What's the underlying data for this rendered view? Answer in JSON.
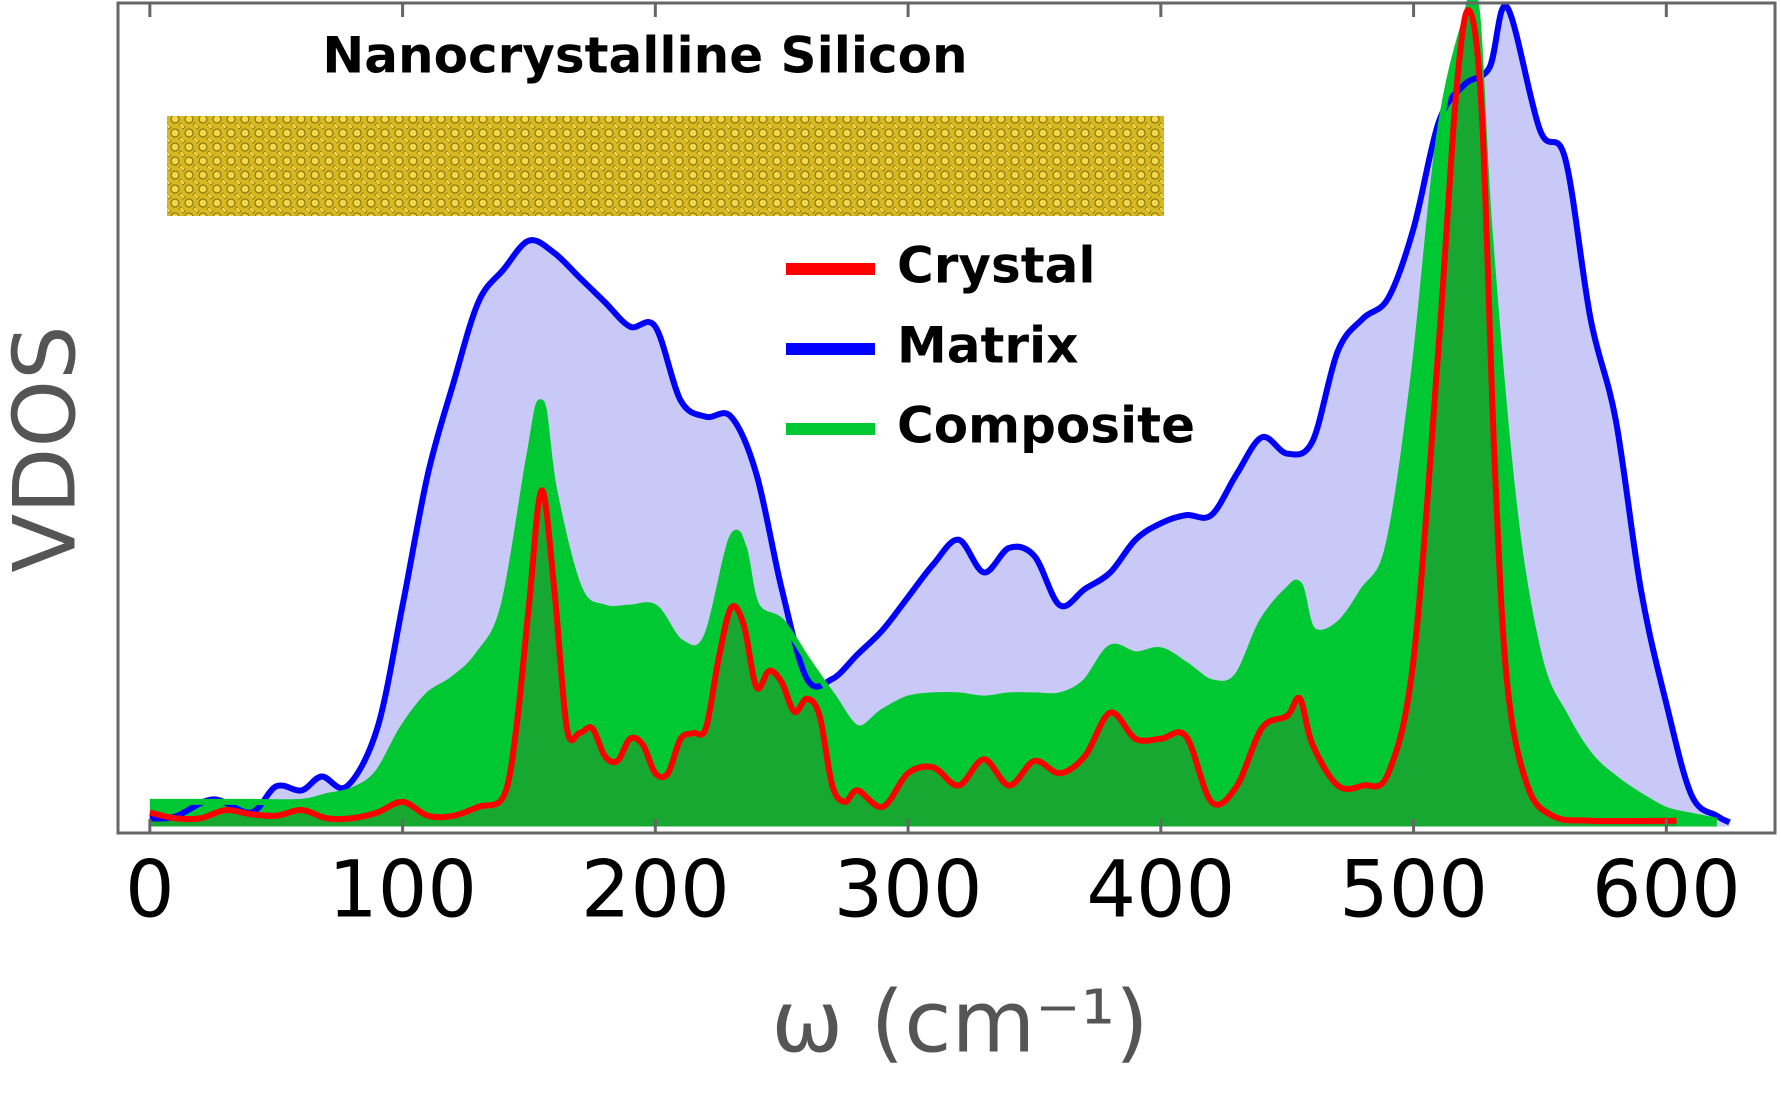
{
  "chart_data": {
    "type": "area",
    "title": "Nanocrystalline Silicon",
    "xlabel": "ω (cm⁻¹)",
    "ylabel": "VDOS",
    "xlim": [
      -12.6,
      643
    ],
    "xticks": [
      0,
      100,
      200,
      300,
      400,
      500,
      600
    ],
    "ylim": [
      -0.8,
      100.5
    ],
    "series": [
      {
        "name": "Crystal",
        "color": "#ff0000",
        "fill": "#17a832",
        "x": [
          0,
          10,
          20,
          30,
          40,
          50,
          60,
          70,
          80,
          90,
          100,
          110,
          120,
          130,
          140,
          145,
          150,
          155,
          160,
          165,
          170,
          175,
          180,
          185,
          190,
          195,
          200,
          205,
          210,
          215,
          220,
          225,
          230,
          235,
          240,
          245,
          250,
          255,
          260,
          265,
          270,
          275,
          280,
          290,
          300,
          310,
          320,
          330,
          340,
          350,
          360,
          370,
          380,
          390,
          400,
          410,
          420,
          430,
          440,
          450,
          455,
          460,
          470,
          480,
          490,
          500,
          510,
          517,
          522,
          527,
          532,
          537,
          545,
          555,
          570,
          604
        ],
        "values": [
          1.7,
          1,
          1,
          2,
          1.5,
          1.3,
          2,
          1,
          1,
          1.7,
          3,
          1.3,
          1.3,
          2.4,
          3.7,
          12,
          27,
          41,
          29,
          12,
          11.4,
          12,
          8.6,
          8,
          10.7,
          10,
          6.5,
          6.5,
          10.7,
          11.4,
          12,
          20.4,
          26.7,
          24.6,
          17,
          19,
          17.6,
          14,
          15.6,
          13.5,
          5,
          3,
          4.4,
          2.4,
          6.5,
          7.2,
          5,
          8.2,
          5,
          8,
          6.5,
          8.6,
          13.9,
          10.7,
          10.7,
          11,
          3,
          4.9,
          12,
          13.5,
          15.6,
          10,
          5,
          5,
          6.5,
          20.4,
          59,
          90,
          99.6,
          87,
          45,
          17.6,
          5,
          1.3,
          0.7,
          0.7
        ]
      },
      {
        "name": "Matrix",
        "color": "#0000ff",
        "fill": "#c9c9f7",
        "x": [
          0,
          10,
          25,
          40,
          50,
          60,
          68,
          78,
          90,
          100,
          110,
          120,
          130,
          140,
          150,
          160,
          170,
          180,
          190,
          200,
          210,
          220,
          230,
          240,
          250,
          260,
          270,
          280,
          290,
          300,
          310,
          320,
          330,
          340,
          350,
          360,
          370,
          380,
          390,
          400,
          410,
          420,
          430,
          440,
          450,
          460,
          470,
          480,
          490,
          500,
          510,
          520,
          530,
          537,
          550,
          560,
          570,
          580,
          590,
          600,
          610,
          620,
          625
        ],
        "values": [
          1,
          1.2,
          3.3,
          1.7,
          4.9,
          4.4,
          6.1,
          4.9,
          12,
          27,
          43,
          54,
          64,
          68,
          71.5,
          70,
          67,
          64,
          61,
          61,
          52,
          50,
          50,
          43,
          29,
          18,
          18,
          21,
          24,
          28,
          32,
          35,
          31,
          34,
          33,
          27,
          29,
          31,
          35,
          37,
          38,
          38,
          43,
          47.5,
          45.5,
          47,
          58,
          62,
          64.5,
          73,
          86,
          90.5,
          92.6,
          100,
          85,
          81.5,
          62,
          49.6,
          28.8,
          15,
          3.8,
          1.3,
          0.5
        ]
      },
      {
        "name": "Composite",
        "color": "#00c832",
        "fill": "#00c832",
        "x": [
          0,
          20,
          40,
          60,
          70,
          80,
          90,
          100,
          110,
          120,
          130,
          140,
          150,
          155,
          160,
          170,
          180,
          190,
          200,
          210,
          220,
          230,
          235,
          240,
          250,
          260,
          270,
          280,
          290,
          300,
          310,
          320,
          330,
          340,
          350,
          360,
          370,
          380,
          390,
          400,
          410,
          420,
          430,
          440,
          450,
          455,
          460,
          470,
          480,
          490,
          500,
          510,
          520,
          525,
          530,
          540,
          550,
          560,
          570,
          580,
          590,
          600,
          610,
          620
        ],
        "values": [
          3,
          3,
          3,
          3,
          3.7,
          4.4,
          6.5,
          12,
          16,
          18,
          21,
          27,
          45,
          51.7,
          41,
          29,
          26.7,
          26.7,
          26.7,
          22.5,
          23,
          35,
          34,
          27,
          25,
          20.4,
          16,
          12,
          14,
          15.6,
          16,
          16,
          15.6,
          16,
          16,
          16,
          17.6,
          21.8,
          21,
          21.5,
          19.7,
          17.6,
          18.3,
          25,
          28.8,
          29.4,
          24,
          24.6,
          28.8,
          34.3,
          55,
          84,
          98,
          99.6,
          73,
          38.5,
          20.4,
          13.5,
          8.6,
          5.8,
          3.7,
          2,
          1.3,
          0.7
        ]
      }
    ]
  }
}
